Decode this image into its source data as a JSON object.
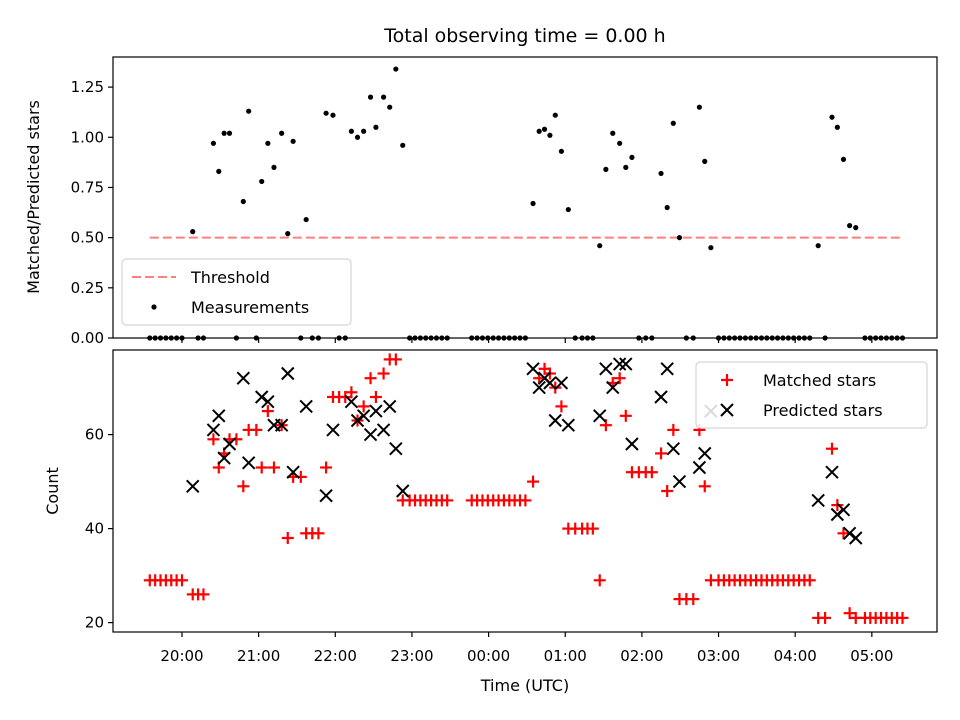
{
  "chart_data": {
    "type": "scatter",
    "title": "Total observing time = 0.00 h",
    "xlabel": "Time (UTC)",
    "xlim": [
      -0.9,
      9.85
    ],
    "x_ticks": [
      {
        "v": 0,
        "label": "20:00"
      },
      {
        "v": 1,
        "label": "21:00"
      },
      {
        "v": 2,
        "label": "22:00"
      },
      {
        "v": 3,
        "label": "23:00"
      },
      {
        "v": 4,
        "label": "00:00"
      },
      {
        "v": 5,
        "label": "01:00"
      },
      {
        "v": 6,
        "label": "02:00"
      },
      {
        "v": 7,
        "label": "03:00"
      },
      {
        "v": 8,
        "label": "04:00"
      },
      {
        "v": 9,
        "label": "05:00"
      }
    ],
    "top_panel": {
      "ylabel": "Matched/Predicted stars",
      "ylim": [
        0,
        1.4
      ],
      "y_ticks": [
        "0.00",
        "0.25",
        "0.50",
        "0.75",
        "1.00",
        "1.25"
      ],
      "legend": [
        "Threshold",
        "Measurements"
      ],
      "threshold": {
        "value": 0.5,
        "x_start": -0.42,
        "x_end": 9.4,
        "color": "#ff7f7f"
      },
      "measurements": [
        [
          -0.42,
          0
        ],
        [
          -0.35,
          0
        ],
        [
          -0.28,
          0
        ],
        [
          -0.21,
          0
        ],
        [
          -0.14,
          0
        ],
        [
          -0.07,
          0
        ],
        [
          0.0,
          0
        ],
        [
          0.14,
          0.53
        ],
        [
          0.21,
          0
        ],
        [
          0.28,
          0
        ],
        [
          0.41,
          0.97
        ],
        [
          0.48,
          0.83
        ],
        [
          0.55,
          1.02
        ],
        [
          0.62,
          1.02
        ],
        [
          0.71,
          0
        ],
        [
          0.8,
          0.68
        ],
        [
          0.87,
          1.13
        ],
        [
          0.97,
          0
        ],
        [
          1.04,
          0.78
        ],
        [
          1.12,
          0.97
        ],
        [
          1.2,
          0.85
        ],
        [
          1.3,
          1.02
        ],
        [
          1.38,
          0.52
        ],
        [
          1.45,
          0.98
        ],
        [
          1.55,
          0
        ],
        [
          1.62,
          0.59
        ],
        [
          1.7,
          0
        ],
        [
          1.78,
          0
        ],
        [
          1.88,
          1.12
        ],
        [
          1.97,
          1.11
        ],
        [
          2.05,
          0
        ],
        [
          2.13,
          0
        ],
        [
          2.21,
          1.03
        ],
        [
          2.29,
          1.0
        ],
        [
          2.37,
          1.03
        ],
        [
          2.46,
          1.2
        ],
        [
          2.53,
          1.05
        ],
        [
          2.63,
          1.2
        ],
        [
          2.71,
          1.15
        ],
        [
          2.79,
          1.34
        ],
        [
          2.88,
          0.96
        ],
        [
          2.97,
          0
        ],
        [
          3.04,
          0
        ],
        [
          3.11,
          0
        ],
        [
          3.18,
          0
        ],
        [
          3.25,
          0
        ],
        [
          3.32,
          0
        ],
        [
          3.39,
          0
        ],
        [
          3.46,
          0
        ],
        [
          3.78,
          0
        ],
        [
          3.85,
          0
        ],
        [
          3.92,
          0
        ],
        [
          3.99,
          0
        ],
        [
          4.06,
          0
        ],
        [
          4.13,
          0
        ],
        [
          4.2,
          0
        ],
        [
          4.27,
          0
        ],
        [
          4.34,
          0
        ],
        [
          4.41,
          0
        ],
        [
          4.48,
          0
        ],
        [
          4.58,
          0.67
        ],
        [
          4.66,
          1.03
        ],
        [
          4.73,
          1.04
        ],
        [
          4.8,
          1.01
        ],
        [
          4.87,
          1.11
        ],
        [
          4.95,
          0.93
        ],
        [
          5.04,
          0.64
        ],
        [
          5.13,
          0
        ],
        [
          5.22,
          0
        ],
        [
          5.29,
          0
        ],
        [
          5.36,
          0
        ],
        [
          5.45,
          0.46
        ],
        [
          5.53,
          0.84
        ],
        [
          5.62,
          1.02
        ],
        [
          5.71,
          0.97
        ],
        [
          5.79,
          0.85
        ],
        [
          5.87,
          0.9
        ],
        [
          5.96,
          0
        ],
        [
          6.05,
          0
        ],
        [
          6.13,
          0
        ],
        [
          6.25,
          0.82
        ],
        [
          6.33,
          0.65
        ],
        [
          6.41,
          1.07
        ],
        [
          6.49,
          0.5
        ],
        [
          6.58,
          0
        ],
        [
          6.67,
          0
        ],
        [
          6.75,
          1.15
        ],
        [
          6.82,
          0.88
        ],
        [
          6.9,
          0.45
        ],
        [
          7.0,
          0
        ],
        [
          7.07,
          0
        ],
        [
          7.14,
          0
        ],
        [
          7.21,
          0
        ],
        [
          7.28,
          0
        ],
        [
          7.35,
          0
        ],
        [
          7.42,
          0
        ],
        [
          7.49,
          0
        ],
        [
          7.56,
          0
        ],
        [
          7.63,
          0
        ],
        [
          7.7,
          0
        ],
        [
          7.77,
          0
        ],
        [
          7.84,
          0
        ],
        [
          7.91,
          0
        ],
        [
          7.98,
          0
        ],
        [
          8.05,
          0
        ],
        [
          8.12,
          0
        ],
        [
          8.19,
          0
        ],
        [
          8.3,
          0.46
        ],
        [
          8.39,
          0
        ],
        [
          8.48,
          1.1
        ],
        [
          8.55,
          1.05
        ],
        [
          8.63,
          0.89
        ],
        [
          8.71,
          0.56
        ],
        [
          8.79,
          0.55
        ],
        [
          8.91,
          0
        ],
        [
          8.98,
          0
        ],
        [
          9.05,
          0
        ],
        [
          9.12,
          0
        ],
        [
          9.19,
          0
        ],
        [
          9.26,
          0
        ],
        [
          9.33,
          0
        ],
        [
          9.4,
          0
        ]
      ]
    },
    "bottom_panel": {
      "ylabel": "Count",
      "ylim": [
        18,
        78
      ],
      "y_ticks": [
        20,
        40,
        60
      ],
      "legend": [
        "Matched stars",
        "Predicted stars"
      ],
      "matched_color": "#ff0000",
      "predicted_color": "#000000",
      "matched": [
        [
          -0.42,
          29
        ],
        [
          -0.35,
          29
        ],
        [
          -0.28,
          29
        ],
        [
          -0.21,
          29
        ],
        [
          -0.14,
          29
        ],
        [
          -0.07,
          29
        ],
        [
          0.0,
          29
        ],
        [
          0.14,
          26
        ],
        [
          0.21,
          26
        ],
        [
          0.28,
          26
        ],
        [
          0.41,
          59
        ],
        [
          0.48,
          53
        ],
        [
          0.55,
          56
        ],
        [
          0.62,
          59
        ],
        [
          0.71,
          59
        ],
        [
          0.8,
          49
        ],
        [
          0.87,
          61
        ],
        [
          0.97,
          61
        ],
        [
          1.04,
          53
        ],
        [
          1.12,
          65
        ],
        [
          1.2,
          53
        ],
        [
          1.3,
          62
        ],
        [
          1.38,
          38
        ],
        [
          1.45,
          51
        ],
        [
          1.55,
          51
        ],
        [
          1.62,
          39
        ],
        [
          1.7,
          39
        ],
        [
          1.78,
          39
        ],
        [
          1.88,
          53
        ],
        [
          1.97,
          68
        ],
        [
          2.05,
          68
        ],
        [
          2.13,
          68
        ],
        [
          2.21,
          69
        ],
        [
          2.29,
          63
        ],
        [
          2.37,
          66
        ],
        [
          2.46,
          72
        ],
        [
          2.53,
          68
        ],
        [
          2.63,
          73
        ],
        [
          2.71,
          76
        ],
        [
          2.79,
          76
        ],
        [
          2.88,
          46
        ],
        [
          2.97,
          46
        ],
        [
          3.04,
          46
        ],
        [
          3.11,
          46
        ],
        [
          3.18,
          46
        ],
        [
          3.25,
          46
        ],
        [
          3.32,
          46
        ],
        [
          3.39,
          46
        ],
        [
          3.46,
          46
        ],
        [
          3.78,
          46
        ],
        [
          3.85,
          46
        ],
        [
          3.92,
          46
        ],
        [
          3.99,
          46
        ],
        [
          4.06,
          46
        ],
        [
          4.13,
          46
        ],
        [
          4.2,
          46
        ],
        [
          4.27,
          46
        ],
        [
          4.34,
          46
        ],
        [
          4.41,
          46
        ],
        [
          4.48,
          46
        ],
        [
          4.58,
          50
        ],
        [
          4.66,
          72
        ],
        [
          4.73,
          74
        ],
        [
          4.8,
          73
        ],
        [
          4.87,
          70
        ],
        [
          4.95,
          66
        ],
        [
          5.04,
          40
        ],
        [
          5.13,
          40
        ],
        [
          5.22,
          40
        ],
        [
          5.29,
          40
        ],
        [
          5.36,
          40
        ],
        [
          5.45,
          29
        ],
        [
          5.53,
          62
        ],
        [
          5.62,
          71
        ],
        [
          5.71,
          72
        ],
        [
          5.79,
          64
        ],
        [
          5.87,
          52
        ],
        [
          5.96,
          52
        ],
        [
          6.05,
          52
        ],
        [
          6.13,
          52
        ],
        [
          6.25,
          56
        ],
        [
          6.33,
          48
        ],
        [
          6.41,
          61
        ],
        [
          6.49,
          25
        ],
        [
          6.58,
          25
        ],
        [
          6.67,
          25
        ],
        [
          6.75,
          61
        ],
        [
          6.82,
          49
        ],
        [
          6.9,
          29
        ],
        [
          7.0,
          29
        ],
        [
          7.07,
          29
        ],
        [
          7.14,
          29
        ],
        [
          7.21,
          29
        ],
        [
          7.28,
          29
        ],
        [
          7.35,
          29
        ],
        [
          7.42,
          29
        ],
        [
          7.49,
          29
        ],
        [
          7.56,
          29
        ],
        [
          7.63,
          29
        ],
        [
          7.7,
          29
        ],
        [
          7.77,
          29
        ],
        [
          7.84,
          29
        ],
        [
          7.91,
          29
        ],
        [
          7.98,
          29
        ],
        [
          8.05,
          29
        ],
        [
          8.12,
          29
        ],
        [
          8.19,
          29
        ],
        [
          8.3,
          21
        ],
        [
          8.39,
          21
        ],
        [
          8.48,
          57
        ],
        [
          8.55,
          45
        ],
        [
          8.63,
          39
        ],
        [
          8.71,
          22
        ],
        [
          8.79,
          21
        ],
        [
          8.91,
          21
        ],
        [
          8.98,
          21
        ],
        [
          9.05,
          21
        ],
        [
          9.12,
          21
        ],
        [
          9.19,
          21
        ],
        [
          9.26,
          21
        ],
        [
          9.33,
          21
        ],
        [
          9.4,
          21
        ]
      ],
      "predicted": [
        [
          0.14,
          49
        ],
        [
          0.41,
          61
        ],
        [
          0.48,
          64
        ],
        [
          0.55,
          55
        ],
        [
          0.62,
          58
        ],
        [
          0.8,
          72
        ],
        [
          0.87,
          54
        ],
        [
          1.04,
          68
        ],
        [
          1.12,
          67
        ],
        [
          1.2,
          62
        ],
        [
          1.3,
          62
        ],
        [
          1.38,
          73
        ],
        [
          1.45,
          52
        ],
        [
          1.62,
          66
        ],
        [
          1.88,
          47
        ],
        [
          1.97,
          61
        ],
        [
          2.21,
          67
        ],
        [
          2.29,
          63
        ],
        [
          2.37,
          64
        ],
        [
          2.46,
          60
        ],
        [
          2.53,
          65
        ],
        [
          2.63,
          61
        ],
        [
          2.71,
          66
        ],
        [
          2.79,
          57
        ],
        [
          2.88,
          48
        ],
        [
          4.58,
          74
        ],
        [
          4.66,
          70
        ],
        [
          4.73,
          72
        ],
        [
          4.8,
          71
        ],
        [
          4.87,
          63
        ],
        [
          4.95,
          71
        ],
        [
          5.04,
          62
        ],
        [
          5.45,
          64
        ],
        [
          5.53,
          74
        ],
        [
          5.62,
          70
        ],
        [
          5.71,
          75
        ],
        [
          5.79,
          75
        ],
        [
          5.87,
          58
        ],
        [
          6.25,
          68
        ],
        [
          6.33,
          74
        ],
        [
          6.41,
          57
        ],
        [
          6.49,
          50
        ],
        [
          6.75,
          53
        ],
        [
          6.82,
          56
        ],
        [
          6.9,
          65
        ],
        [
          8.3,
          46
        ],
        [
          8.48,
          52
        ],
        [
          8.55,
          43
        ],
        [
          8.63,
          44
        ],
        [
          8.71,
          39
        ],
        [
          8.79,
          38
        ]
      ]
    }
  }
}
